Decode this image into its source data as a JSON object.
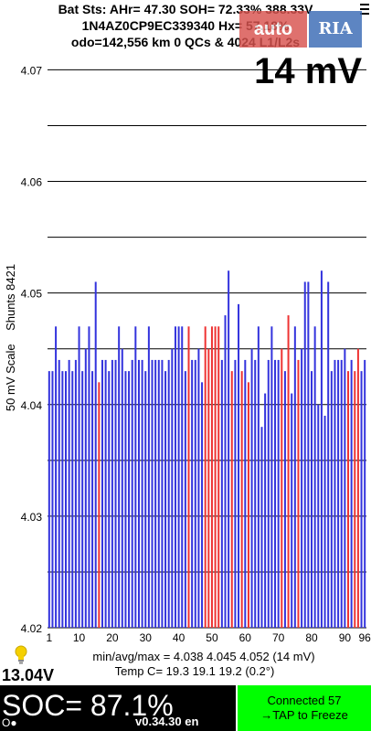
{
  "header": {
    "line1": "Bat Sts:  AHr= 47.30  SOH= 72.33%   388.33V",
    "line2": "1N4AZ0CP9EC339340   Hx= 57.18%",
    "line3": "odo=142,556 km  0 QCs & 4024 L1/L2s"
  },
  "scale_label": "14 mV",
  "watermark": {
    "left": "auto",
    "right": "RIA"
  },
  "chart_data": {
    "type": "bar",
    "ylabel": "50 mV Scale    Shunts 8421",
    "ylim": [
      4.02,
      4.072
    ],
    "yticks": [
      "4.07",
      "4.06",
      "4.05",
      "4.04",
      "4.03",
      "4.02"
    ],
    "xticks": [
      1,
      10,
      20,
      30,
      40,
      50,
      60,
      70,
      80,
      90,
      96
    ],
    "colors": {
      "normal": "#3333dd",
      "shunt": "#ee3333"
    },
    "values": [
      4.043,
      4.043,
      4.047,
      4.044,
      4.043,
      4.043,
      4.044,
      4.043,
      4.044,
      4.047,
      4.043,
      4.045,
      4.047,
      4.043,
      4.051,
      4.042,
      4.044,
      4.044,
      4.043,
      4.044,
      4.044,
      4.047,
      4.045,
      4.043,
      4.043,
      4.044,
      4.047,
      4.044,
      4.044,
      4.043,
      4.047,
      4.044,
      4.044,
      4.044,
      4.044,
      4.043,
      4.044,
      4.045,
      4.047,
      4.047,
      4.047,
      4.043,
      4.047,
      4.044,
      4.044,
      4.045,
      4.042,
      4.047,
      4.045,
      4.047,
      4.047,
      4.047,
      4.044,
      4.048,
      4.052,
      4.043,
      4.044,
      4.049,
      4.043,
      4.044,
      4.042,
      4.045,
      4.044,
      4.047,
      4.038,
      4.041,
      4.044,
      4.047,
      4.044,
      4.044,
      4.045,
      4.043,
      4.048,
      4.041,
      4.047,
      4.044,
      4.045,
      4.051,
      4.051,
      4.043,
      4.047,
      4.04,
      4.052,
      4.039,
      4.051,
      4.043,
      4.044,
      4.044,
      4.044,
      4.045,
      4.043,
      4.044,
      4.043,
      4.045,
      4.043,
      4.044
    ],
    "shunts": [
      16,
      43,
      48,
      49,
      50,
      51,
      52,
      56,
      59,
      61,
      71,
      73,
      76,
      91,
      93,
      94
    ]
  },
  "footer": {
    "stats": "min/avg/max = 4.038  4.045  4.052   (14 mV)",
    "temp": "Temp C= 19.3  19.1  19.2  (0.2°)",
    "voltage": "13.04V",
    "soc": "SOC= 87.1%",
    "version": "v0.34.30 en",
    "indicator": "O●",
    "connected": "Connected 57",
    "tap": "→TAP to Freeze"
  }
}
